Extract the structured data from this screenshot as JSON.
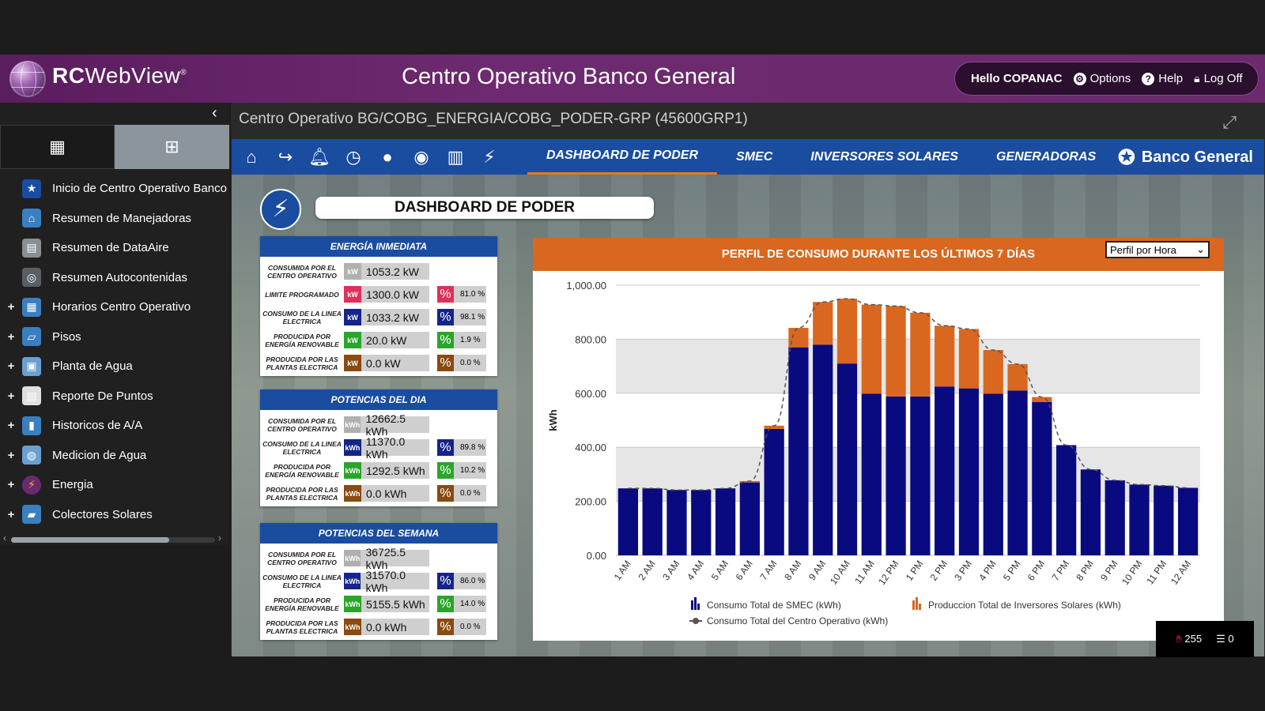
{
  "header": {
    "logo_rc": "RC",
    "logo_webview": "WebView",
    "logo_reg": "®",
    "title": "Centro Operativo Banco General",
    "hello": "Hello COPANAC",
    "options": "Options",
    "help": "Help",
    "logoff": "Log Off"
  },
  "sidebar": {
    "items": [
      {
        "label": "Inicio de Centro Operativo Banco",
        "icon": "star-icon",
        "color": "#1a4ca0",
        "plus": false
      },
      {
        "label": "Resumen de Manejadoras",
        "icon": "house-icon",
        "color": "#3a7fc0",
        "plus": false
      },
      {
        "label": "Resumen de DataAire",
        "icon": "server-icon",
        "color": "#8a8f94",
        "plus": false
      },
      {
        "label": "Resumen Autocontenidas",
        "icon": "fan-icon",
        "color": "#5a5f66",
        "plus": false
      },
      {
        "label": "Horarios Centro Operativo",
        "icon": "calendar-icon",
        "color": "#3a7fc0",
        "plus": true
      },
      {
        "label": "Pisos",
        "icon": "map-icon",
        "color": "#3a7fc0",
        "plus": true
      },
      {
        "label": "Planta de Agua",
        "icon": "tank-icon",
        "color": "#6aa0d0",
        "plus": true
      },
      {
        "label": "Reporte De Puntos",
        "icon": "report-icon",
        "color": "#e0e0e0",
        "plus": true
      },
      {
        "label": "Historicos de A/A",
        "icon": "bar-chart-icon",
        "color": "#3a7fc0",
        "plus": true
      },
      {
        "label": "Medicion de Agua",
        "icon": "meter-icon",
        "color": "#6aa0d0",
        "plus": true
      },
      {
        "label": "Energia",
        "icon": "energy-icon",
        "color": "#6a2a70",
        "plus": true
      },
      {
        "label": "Colectores Solares",
        "icon": "solar-panel-icon",
        "color": "#3a7fc0",
        "plus": true
      }
    ]
  },
  "content": {
    "breadcrumb": "Centro Operativo BG/COBG_ENERGIA/COBG_PODER-GRP (45600GRP1)",
    "nav_tabs": [
      "DASHBOARD DE PODER",
      "SMEC",
      "INVERSORES SOLARES",
      "GENERADORAS"
    ],
    "bank_name": "Banco General",
    "dashboard_title": "DASHBOARD DE PODER"
  },
  "cards": [
    {
      "title": "ENERGÍA INMEDIATA",
      "rows": [
        {
          "label": "CONSUMIDA POR EL CENTRO OPERATIVO",
          "unit": "kW",
          "unit_color": "#b0b0b0",
          "value": "1053.2 kW",
          "pct": "",
          "pct_color": ""
        },
        {
          "label": "LIMITE PROGRAMADO",
          "unit": "kW",
          "unit_color": "#e0305a",
          "value": "1300.0 kW",
          "pct": "81.0 %",
          "pct_color": "#e0305a"
        },
        {
          "label": "CONSUMO DE LA LINEA ELECTRICA",
          "unit": "kW",
          "unit_color": "#14248a",
          "value": "1033.2 kW",
          "pct": "98.1 %",
          "pct_color": "#14248a"
        },
        {
          "label": "PRODUCIDA POR ENERGÍA RENOVABLE",
          "unit": "kW",
          "unit_color": "#2aa52a",
          "value": "20.0 kW",
          "pct": "1.9 %",
          "pct_color": "#2aa52a"
        },
        {
          "label": "PRODUCIDA POR LAS PLANTAS ELECTRICA",
          "unit": "kW",
          "unit_color": "#8a4a10",
          "value": "0.0 kW",
          "pct": "0.0 %",
          "pct_color": "#8a4a10"
        }
      ]
    },
    {
      "title": "POTENCIAS DEL DIA",
      "rows": [
        {
          "label": "CONSUMIDA POR EL CENTRO OPERATIVO",
          "unit": "kWh",
          "unit_color": "#b0b0b0",
          "value": "12662.5 kWh",
          "pct": "",
          "pct_color": ""
        },
        {
          "label": "CONSUMO DE LA LINEA ELECTRICA",
          "unit": "kWh",
          "unit_color": "#14248a",
          "value": "11370.0 kWh",
          "pct": "89.8 %",
          "pct_color": "#14248a"
        },
        {
          "label": "PRODUCIDA POR ENERGÍA RENOVABLE",
          "unit": "kWh",
          "unit_color": "#2aa52a",
          "value": "1292.5 kWh",
          "pct": "10.2 %",
          "pct_color": "#2aa52a"
        },
        {
          "label": "PRODUCIDA POR LAS PLANTAS ELECTRICA",
          "unit": "kWh",
          "unit_color": "#8a4a10",
          "value": "0.0 kWh",
          "pct": "0.0 %",
          "pct_color": "#8a4a10"
        }
      ]
    },
    {
      "title": "POTENCIAS DEL SEMANA",
      "rows": [
        {
          "label": "CONSUMIDA POR EL CENTRO OPERATIVO",
          "unit": "kWh",
          "unit_color": "#b0b0b0",
          "value": "36725.5 kWh",
          "pct": "",
          "pct_color": ""
        },
        {
          "label": "CONSUMO DE LA LINEA ELECTRICA",
          "unit": "kWh",
          "unit_color": "#14248a",
          "value": "31570.0 kWh",
          "pct": "86.0 %",
          "pct_color": "#14248a"
        },
        {
          "label": "PRODUCIDA POR ENERGÍA RENOVABLE",
          "unit": "kWh",
          "unit_color": "#2aa52a",
          "value": "5155.5 kWh",
          "pct": "14.0 %",
          "pct_color": "#2aa52a"
        },
        {
          "label": "PRODUCIDA POR LAS PLANTAS ELECTRICA",
          "unit": "kWh",
          "unit_color": "#8a4a10",
          "value": "0.0 kWh",
          "pct": "0.0 %",
          "pct_color": "#8a4a10"
        }
      ]
    }
  ],
  "chart_select": "Perfil por Hora",
  "chart_data": {
    "type": "bar",
    "title": "PERFIL DE CONSUMO DURANTE LOS ÚLTIMOS 7 DÍAS",
    "ylabel": "kWh",
    "xlabel": "",
    "ylim": [
      0,
      1000
    ],
    "yticks": [
      "0.00",
      "200.00",
      "400.00",
      "600.00",
      "800.00",
      "1,000.00"
    ],
    "categories": [
      "1 AM",
      "2 AM",
      "3 AM",
      "4 AM",
      "5 AM",
      "6 AM",
      "7 AM",
      "8 AM",
      "9 AM",
      "10 AM",
      "11 AM",
      "12 PM",
      "1 PM",
      "2 PM",
      "3 PM",
      "4 PM",
      "5 PM",
      "6 PM",
      "7 PM",
      "8 PM",
      "9 PM",
      "10 PM",
      "11 PM",
      "12 AM"
    ],
    "stacked": true,
    "series": [
      {
        "name": "Consumo Total de SMEC (kWh)",
        "color": "#0a0a80",
        "values": [
          248,
          248,
          242,
          242,
          248,
          270,
          468,
          770,
          780,
          710,
          598,
          588,
          588,
          625,
          618,
          598,
          610,
          568,
          408,
          318,
          278,
          262,
          258,
          250
        ]
      },
      {
        "name": "Produccion Total de Inversores Solares (kWh)",
        "color": "#d9671f",
        "values": [
          0,
          0,
          0,
          0,
          0,
          5,
          12,
          72,
          158,
          240,
          330,
          335,
          310,
          225,
          220,
          162,
          98,
          18,
          0,
          0,
          0,
          0,
          0,
          0
        ]
      },
      {
        "name": "Consumo Total del Centro Operativo (kWh)",
        "type": "line",
        "color": "#555555",
        "values": [
          248,
          248,
          242,
          242,
          248,
          275,
          480,
          842,
          938,
          950,
          928,
          923,
          898,
          850,
          838,
          760,
          708,
          586,
          408,
          318,
          278,
          262,
          258,
          250
        ]
      }
    ],
    "legend_position": "bottom",
    "grid": true
  },
  "status": {
    "alarms": "255",
    "events": "0"
  }
}
